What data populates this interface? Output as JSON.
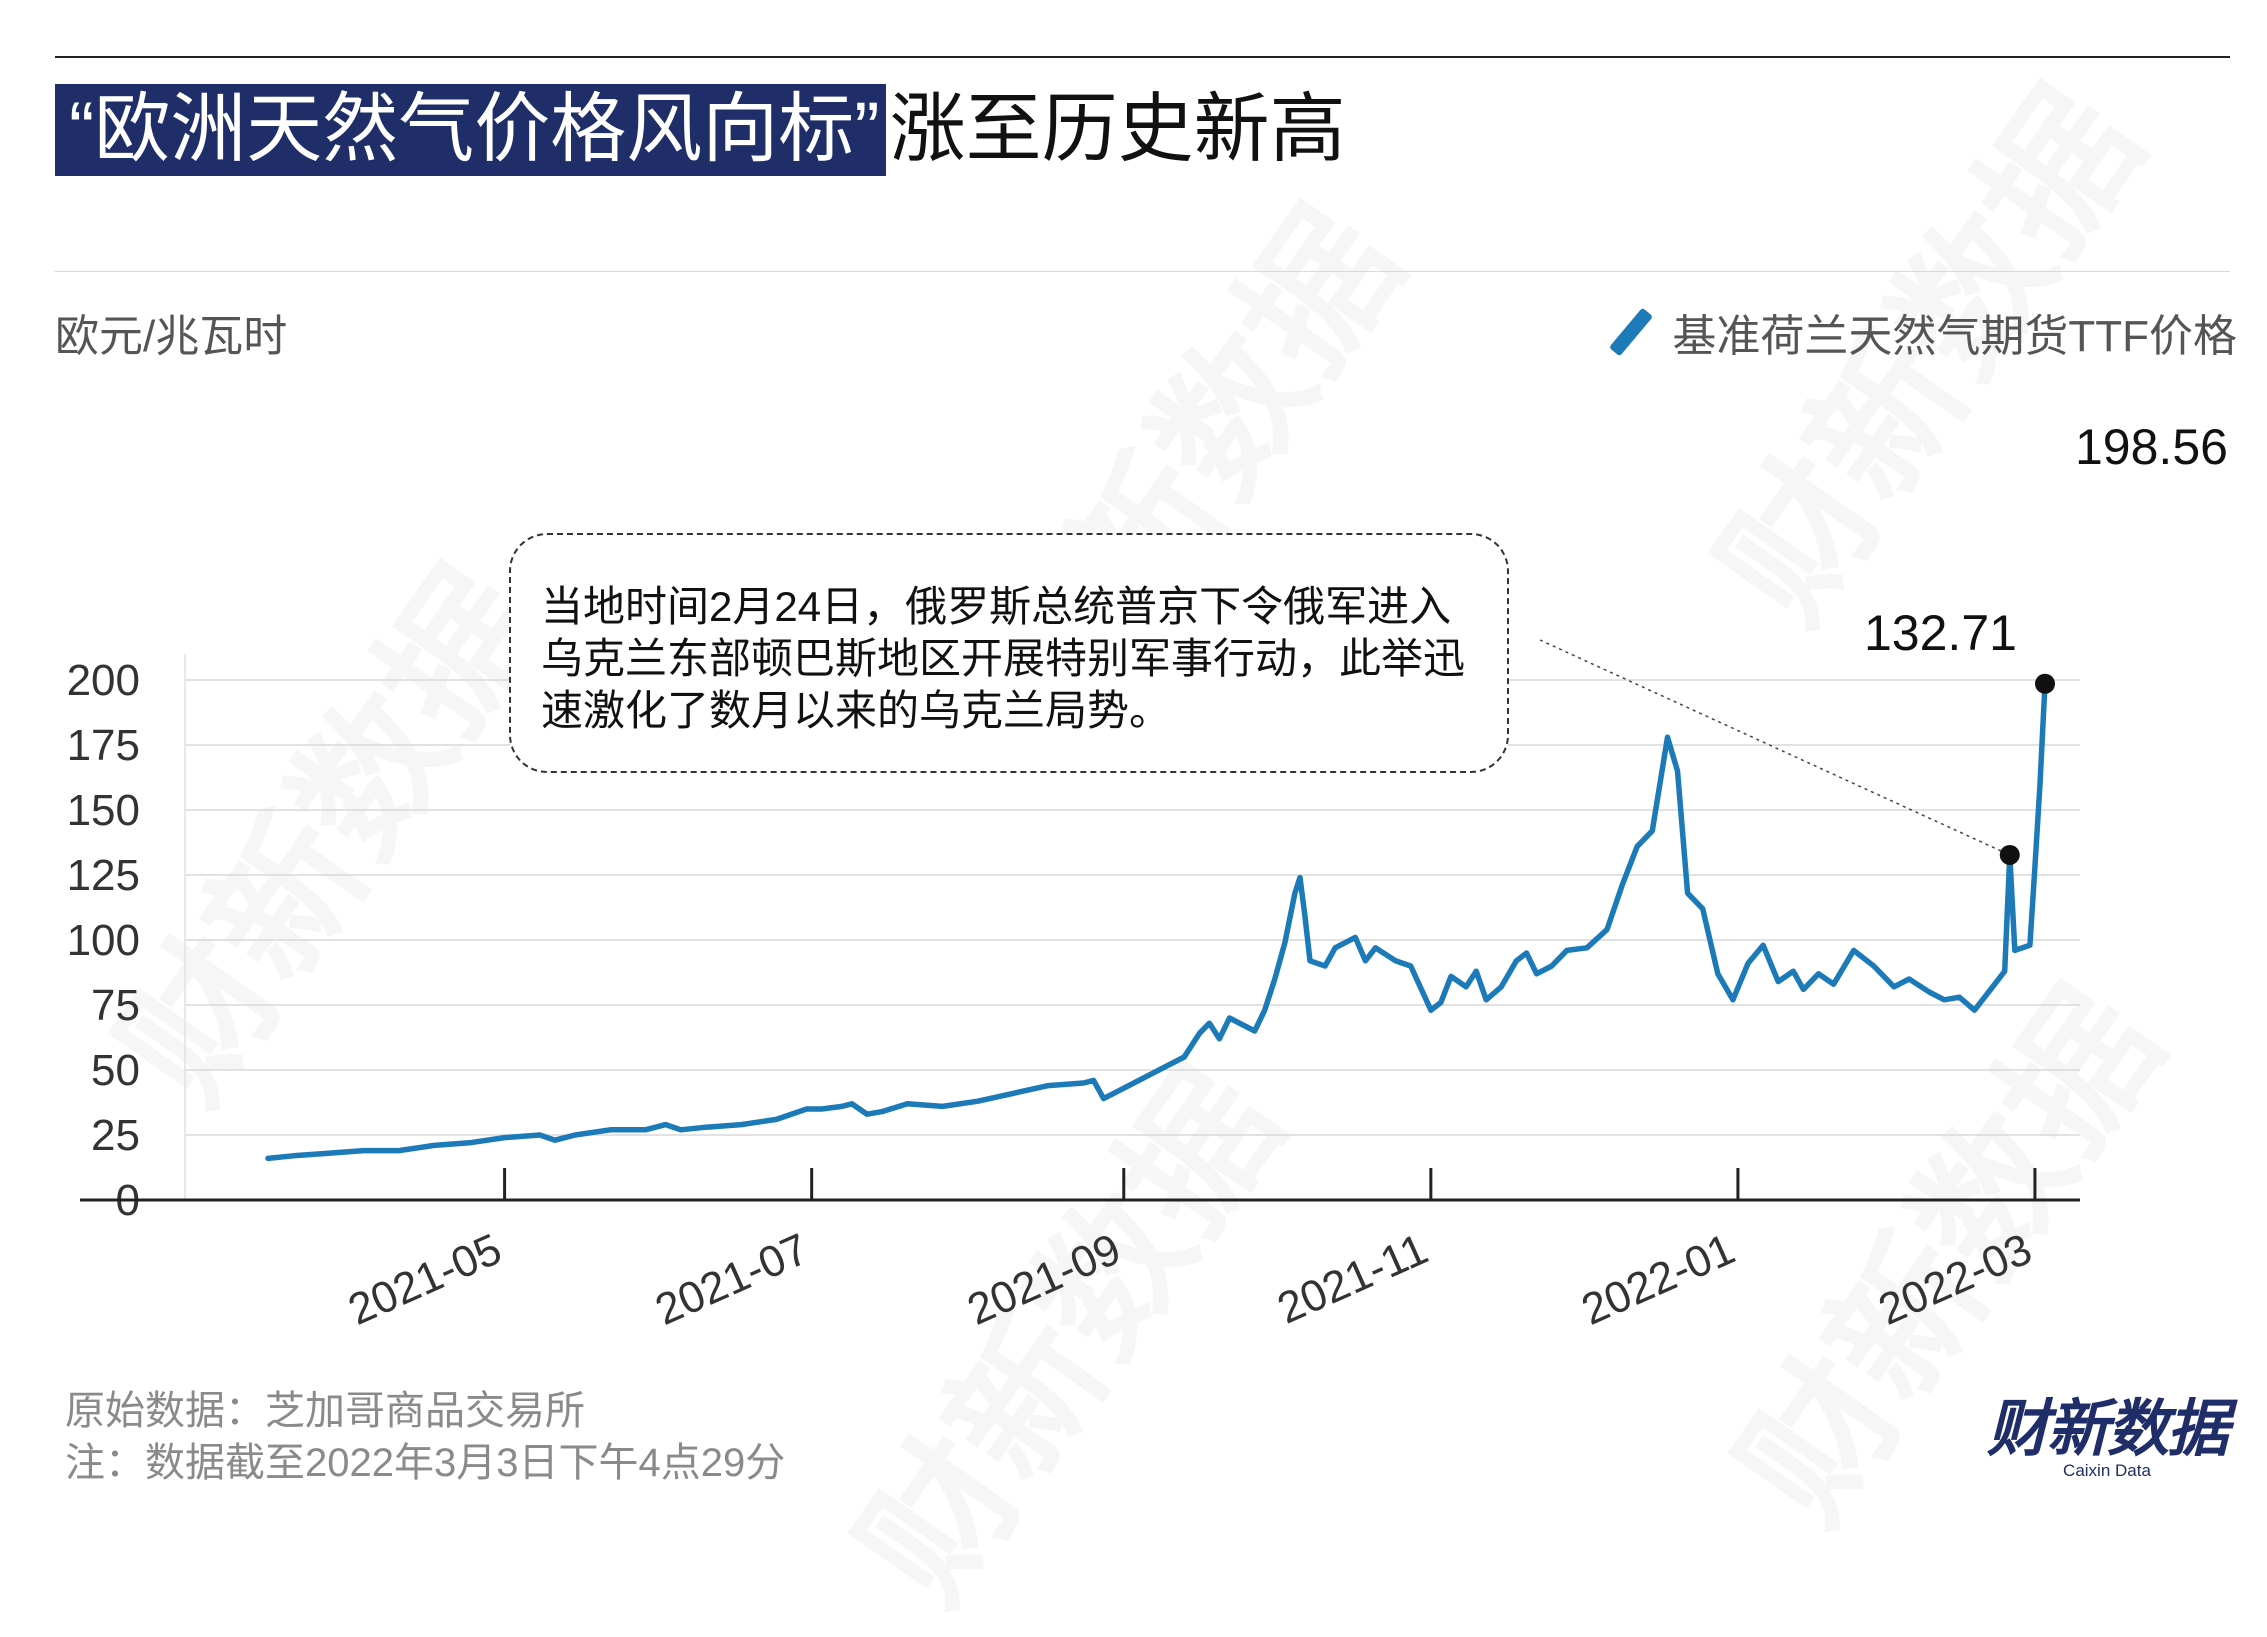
{
  "title": {
    "highlight": "“欧洲天然气价格风向标”",
    "rest": "涨至历史新高"
  },
  "unit_label": "欧元/兆瓦时",
  "legend": {
    "label": "基准荷兰天然气期货TTF价格",
    "color": "#1d7ab8"
  },
  "annotation": "当地时间2月24日，俄罗斯总统普京下令俄军进入乌克兰东部顿巴斯地区开展特别军事行动，此举迅速激化了数月以来的乌克兰局势。",
  "source": {
    "line1": "原始数据：芝加哥商品交易所",
    "line2": "注：数据截至2022年3月3日下午4点29分"
  },
  "brand": {
    "cn": "财新数据",
    "en": "Caixin Data"
  },
  "watermark": "财新数据",
  "callouts": [
    {
      "label": "198.56",
      "x": "2022-03-03",
      "y": 198.56
    },
    {
      "label": "132.71",
      "x": "2022-02-24",
      "y": 132.71
    }
  ],
  "chart_data": {
    "type": "line",
    "series": [
      {
        "name": "基准荷兰天然气期货TTF价格",
        "color": "#1d7ab8",
        "points": [
          [
            "2021-03-15",
            16
          ],
          [
            "2021-03-20",
            17
          ],
          [
            "2021-03-27",
            18
          ],
          [
            "2021-04-03",
            19
          ],
          [
            "2021-04-10",
            19
          ],
          [
            "2021-04-17",
            21
          ],
          [
            "2021-04-24",
            22
          ],
          [
            "2021-05-01",
            24
          ],
          [
            "2021-05-08",
            25
          ],
          [
            "2021-05-11",
            23
          ],
          [
            "2021-05-15",
            25
          ],
          [
            "2021-05-22",
            27
          ],
          [
            "2021-05-29",
            27
          ],
          [
            "2021-06-02",
            29
          ],
          [
            "2021-06-05",
            27
          ],
          [
            "2021-06-10",
            28
          ],
          [
            "2021-06-17",
            29
          ],
          [
            "2021-06-24",
            31
          ],
          [
            "2021-06-30",
            35
          ],
          [
            "2021-07-03",
            35
          ],
          [
            "2021-07-07",
            36
          ],
          [
            "2021-07-09",
            37
          ],
          [
            "2021-07-12",
            33
          ],
          [
            "2021-07-15",
            34
          ],
          [
            "2021-07-20",
            37
          ],
          [
            "2021-07-27",
            36
          ],
          [
            "2021-08-03",
            38
          ],
          [
            "2021-08-10",
            41
          ],
          [
            "2021-08-17",
            44
          ],
          [
            "2021-08-24",
            45
          ],
          [
            "2021-08-26",
            46
          ],
          [
            "2021-08-28",
            39
          ],
          [
            "2021-08-31",
            42
          ],
          [
            "2021-09-06",
            48
          ],
          [
            "2021-09-13",
            55
          ],
          [
            "2021-09-16",
            64
          ],
          [
            "2021-09-18",
            68
          ],
          [
            "2021-09-20",
            62
          ],
          [
            "2021-09-22",
            70
          ],
          [
            "2021-09-27",
            65
          ],
          [
            "2021-09-29",
            73
          ],
          [
            "2021-10-01",
            85
          ],
          [
            "2021-10-03",
            99
          ],
          [
            "2021-10-05",
            118
          ],
          [
            "2021-10-06",
            124
          ],
          [
            "2021-10-07",
            109
          ],
          [
            "2021-10-08",
            92
          ],
          [
            "2021-10-11",
            90
          ],
          [
            "2021-10-13",
            97
          ],
          [
            "2021-10-15",
            99
          ],
          [
            "2021-10-17",
            101
          ],
          [
            "2021-10-19",
            92
          ],
          [
            "2021-10-21",
            97
          ],
          [
            "2021-10-25",
            92
          ],
          [
            "2021-10-28",
            90
          ],
          [
            "2021-11-01",
            73
          ],
          [
            "2021-11-03",
            76
          ],
          [
            "2021-11-05",
            86
          ],
          [
            "2021-11-08",
            82
          ],
          [
            "2021-11-10",
            88
          ],
          [
            "2021-11-12",
            77
          ],
          [
            "2021-11-15",
            82
          ],
          [
            "2021-11-18",
            92
          ],
          [
            "2021-11-20",
            95
          ],
          [
            "2021-11-22",
            87
          ],
          [
            "2021-11-25",
            90
          ],
          [
            "2021-11-28",
            96
          ],
          [
            "2021-12-02",
            97
          ],
          [
            "2021-12-06",
            104
          ],
          [
            "2021-12-09",
            121
          ],
          [
            "2021-12-12",
            136
          ],
          [
            "2021-12-15",
            142
          ],
          [
            "2021-12-18",
            178
          ],
          [
            "2021-12-20",
            165
          ],
          [
            "2021-12-22",
            118
          ],
          [
            "2021-12-25",
            112
          ],
          [
            "2021-12-28",
            87
          ],
          [
            "2021-12-31",
            77
          ],
          [
            "2022-01-03",
            91
          ],
          [
            "2022-01-06",
            98
          ],
          [
            "2022-01-09",
            84
          ],
          [
            "2022-01-12",
            88
          ],
          [
            "2022-01-14",
            81
          ],
          [
            "2022-01-17",
            87
          ],
          [
            "2022-01-20",
            83
          ],
          [
            "2022-01-24",
            96
          ],
          [
            "2022-01-28",
            90
          ],
          [
            "2022-02-01",
            82
          ],
          [
            "2022-02-04",
            85
          ],
          [
            "2022-02-08",
            80
          ],
          [
            "2022-02-11",
            77
          ],
          [
            "2022-02-14",
            78
          ],
          [
            "2022-02-17",
            73
          ],
          [
            "2022-02-21",
            83
          ],
          [
            "2022-02-23",
            88
          ],
          [
            "2022-02-24",
            132.71
          ],
          [
            "2022-02-25",
            96
          ],
          [
            "2022-02-28",
            98
          ],
          [
            "2022-03-01",
            128
          ],
          [
            "2022-03-02",
            160
          ],
          [
            "2022-03-03",
            198.56
          ]
        ]
      }
    ],
    "x_ticks": [
      "2021-05",
      "2021-07",
      "2021-09",
      "2021-11",
      "2022-01",
      "2022-03"
    ],
    "y_ticks": [
      0,
      25,
      50,
      75,
      100,
      125,
      150,
      175,
      200
    ],
    "ylim": [
      0,
      210
    ],
    "xlim": [
      "2021-03-15",
      "2022-03-03"
    ],
    "ylabel": "欧元/兆瓦时",
    "grid": true,
    "legend": "top-right"
  }
}
